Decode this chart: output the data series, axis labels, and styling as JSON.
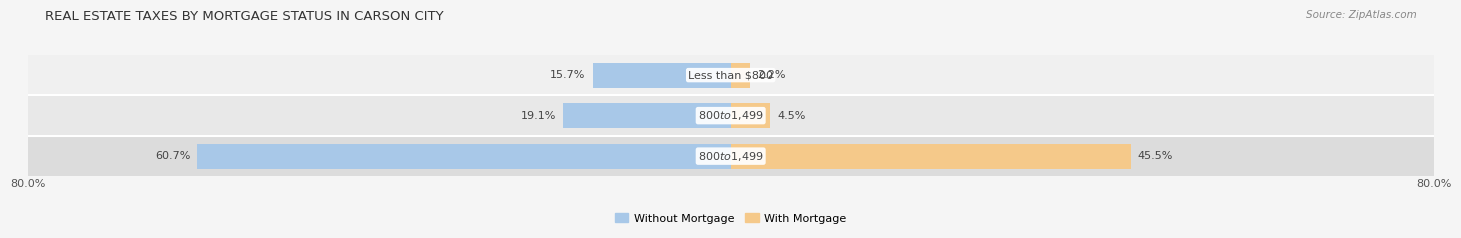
{
  "title": "REAL ESTATE TAXES BY MORTGAGE STATUS IN CARSON CITY",
  "source": "Source: ZipAtlas.com",
  "rows": [
    {
      "label": "Less than $800",
      "without_mortgage": 15.7,
      "with_mortgage": 2.2
    },
    {
      "label": "$800 to $1,499",
      "without_mortgage": 19.1,
      "with_mortgage": 4.5
    },
    {
      "label": "$800 to $1,499",
      "without_mortgage": 60.7,
      "with_mortgage": 45.5
    }
  ],
  "x_min": -80.0,
  "x_max": 80.0,
  "x_left_label": "80.0%",
  "x_right_label": "80.0%",
  "color_without": "#a8c8e8",
  "color_with": "#f5c98a",
  "bar_height": 0.62,
  "row_bg_colors": [
    "#f0f0f0",
    "#e8e8e8",
    "#dcdcdc"
  ],
  "row_border_color": "#ffffff",
  "title_fontsize": 9.5,
  "source_fontsize": 7.5,
  "label_fontsize": 8,
  "pct_fontsize": 8,
  "tick_fontsize": 8,
  "legend_fontsize": 8
}
